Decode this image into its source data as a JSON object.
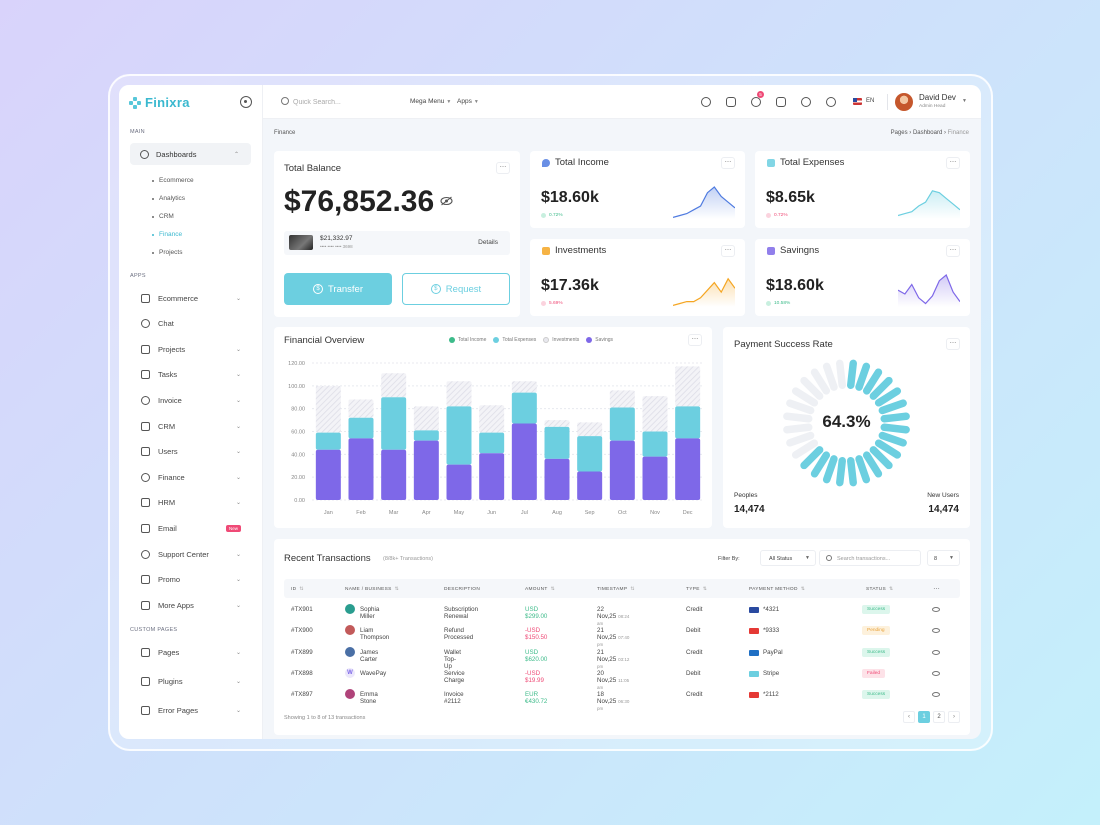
{
  "brand": {
    "name": "Finixra"
  },
  "sidebar": {
    "main_label": "MAIN",
    "dashboards": {
      "label": "Dashboards",
      "children": [
        {
          "label": "Ecommerce"
        },
        {
          "label": "Analytics"
        },
        {
          "label": "CRM"
        },
        {
          "label": "Finance",
          "active": true
        },
        {
          "label": "Projects"
        }
      ]
    },
    "apps_label": "APPS",
    "apps": [
      {
        "label": "Ecommerce",
        "chevron": true
      },
      {
        "label": "Chat",
        "chevron": false
      },
      {
        "label": "Projects",
        "chevron": true
      },
      {
        "label": "Tasks",
        "chevron": true
      },
      {
        "label": "Invoice",
        "chevron": true
      },
      {
        "label": "CRM",
        "chevron": true
      },
      {
        "label": "Users",
        "chevron": true
      },
      {
        "label": "Finance",
        "chevron": true
      },
      {
        "label": "HRM",
        "chevron": true
      },
      {
        "label": "Email",
        "badge": "New"
      },
      {
        "label": "Support Center",
        "chevron": true
      },
      {
        "label": "Promo",
        "chevron": true
      },
      {
        "label": "More Apps",
        "chevron": true
      }
    ],
    "custom_label": "CUSTOM PAGES",
    "custom": [
      {
        "label": "Pages"
      },
      {
        "label": "Plugins"
      },
      {
        "label": "Error Pages"
      }
    ]
  },
  "header": {
    "search_placeholder": "Quick Search...",
    "mega_menu": "Mega Menu",
    "apps": "Apps",
    "notif_count": "5",
    "lang": "EN",
    "user_name": "David Dev",
    "user_role": "Admin Head"
  },
  "breadcrumb": {
    "left": "Finance",
    "pages": "Pages",
    "dashboard": "Dashboard",
    "current": "Finance"
  },
  "balance": {
    "title": "Total Balance",
    "value": "$76,852.36",
    "card_amount": "$21,332.97",
    "card_mask": "•••• •••• •••• 3698",
    "details": "Details",
    "transfer": "Transfer",
    "request": "Request"
  },
  "stats": [
    {
      "title": "Total Income",
      "value": "$18.60k",
      "change": "0.72%",
      "trend": "up",
      "color": "#4f7be0"
    },
    {
      "title": "Total Expenses",
      "value": "$8.65k",
      "change": "0.72%",
      "trend": "down",
      "color": "#6ccfe0"
    },
    {
      "title": "Investments",
      "value": "$17.36k",
      "change": "5.69%",
      "trend": "down",
      "color": "#f5a623"
    },
    {
      "title": "Savingns",
      "value": "$18.60k",
      "change": "10.58%",
      "trend": "up",
      "color": "#7e68e8"
    }
  ],
  "overview": {
    "title": "Financial Overview",
    "legend": [
      {
        "name": "Total Income",
        "color": "#3dbb8a"
      },
      {
        "name": "Total Expenses",
        "color": "#6ccfe0"
      },
      {
        "name": "Investments",
        "color": "#e8e8ee"
      },
      {
        "name": "Savings",
        "color": "#7e68e8"
      }
    ]
  },
  "chart_data": {
    "type": "bar",
    "categories": [
      "Jan",
      "Feb",
      "Mar",
      "Apr",
      "May",
      "Jun",
      "Jul",
      "Aug",
      "Sep",
      "Oct",
      "Nov",
      "Dec"
    ],
    "ylim": [
      0,
      120
    ],
    "yticks": [
      "0.00",
      "20.00",
      "40.00",
      "60.00",
      "80.00",
      "100.00",
      "120.00"
    ],
    "series": [
      {
        "name": "Savings",
        "values": [
          44,
          54,
          44,
          52,
          31,
          41,
          67,
          36,
          25,
          52,
          38,
          54
        ]
      },
      {
        "name": "Total Expenses",
        "values": [
          15,
          18,
          46,
          9,
          51,
          18,
          27,
          28,
          31,
          29,
          22,
          28
        ]
      },
      {
        "name": "Investments",
        "values": [
          41,
          16,
          21,
          21,
          22,
          24,
          10,
          6,
          12,
          15,
          31,
          35
        ]
      }
    ]
  },
  "payment": {
    "title": "Payment Success Rate",
    "percent": "64.3%",
    "fraction": 0.643,
    "peoples_label": "Peoples",
    "peoples_value": "14,474",
    "new_users_label": "New Users",
    "new_users_value": "14,474"
  },
  "transactions": {
    "title": "Recent Transactions",
    "subtitle": "(8/8k+ Transactions)",
    "filter_label": "Filter By:",
    "status_filter": "All Status",
    "search_placeholder": "Search transactions...",
    "per_page": "8",
    "columns": [
      "ID",
      "NAME / BUSINESS",
      "DESCRIPTION",
      "AMOUNT",
      "TIMESTAMP",
      "TYPE",
      "PAYMENT METHOD",
      "STATUS"
    ],
    "rows": [
      {
        "id": "#TX901",
        "name": "Sophia Miller",
        "desc": "Subscription Renewal",
        "amount": "USD $299.00",
        "sign": "pos",
        "date": "22 Nov,25",
        "time": "08:24 am",
        "type": "Credit",
        "method": "*4321",
        "method_kind": "visa",
        "status": "Success"
      },
      {
        "id": "#TX900",
        "name": "Liam Thompson",
        "desc": "Refund Processed",
        "amount": "-USD $150.50",
        "sign": "neg",
        "date": "21 Nov,25",
        "time": "07:40 pm",
        "type": "Debit",
        "method": "*9333",
        "method_kind": "master",
        "status": "Pending"
      },
      {
        "id": "#TX899",
        "name": "James Carter",
        "desc": "Wallet Top-Up",
        "amount": "USD $620.00",
        "sign": "pos",
        "date": "21 Nov,25",
        "time": "03:12 pm",
        "type": "Credit",
        "method": "PayPal",
        "method_kind": "paypal",
        "status": "Success"
      },
      {
        "id": "#TX898",
        "name": "WavePay",
        "desc": "Service Charge",
        "amount": "-USD $19.99",
        "sign": "neg",
        "date": "20 Nov,25",
        "time": "11:05 am",
        "type": "Debit",
        "method": "Stripe",
        "method_kind": "stripe",
        "status": "Failed"
      },
      {
        "id": "#TX897",
        "name": "Emma Stone",
        "desc": "Invoice #2112",
        "amount": "EUR €430.72",
        "sign": "pos",
        "date": "18 Nov,25",
        "time": "06:30 pm",
        "type": "Credit",
        "method": "*2112",
        "method_kind": "master",
        "status": "Success"
      }
    ],
    "footer": "Showing 1 to 8 of 13 transactions",
    "pages": [
      "1",
      "2"
    ]
  }
}
